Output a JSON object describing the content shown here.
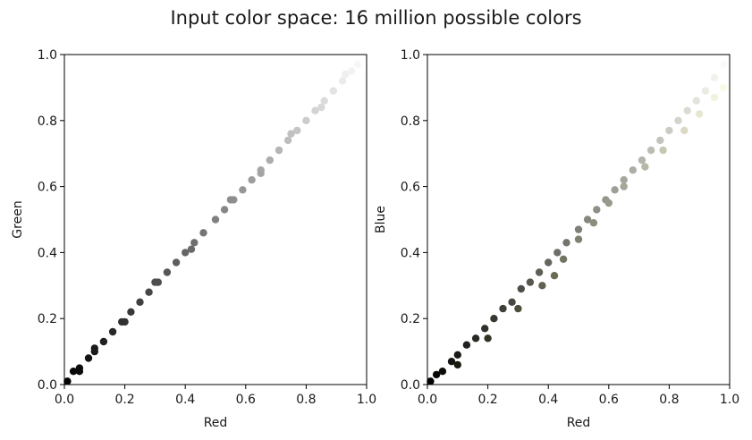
{
  "figure": {
    "title": "Input color space: 16 million possible colors"
  },
  "chart_data": [
    {
      "type": "scatter",
      "title": "",
      "xlabel": "Red",
      "ylabel": "Green",
      "xlim": [
        0.0,
        1.0
      ],
      "ylim": [
        0.0,
        1.0
      ],
      "xticks": [
        "0.0",
        "0.2",
        "0.4",
        "0.6",
        "0.8",
        "1.0"
      ],
      "yticks": [
        "0.0",
        "0.2",
        "0.4",
        "0.6",
        "0.8",
        "1.0"
      ],
      "grid": false,
      "series": [
        {
          "points": [
            [
              0.01,
              0.01
            ],
            [
              0.03,
              0.04
            ],
            [
              0.05,
              0.05
            ],
            [
              0.08,
              0.08
            ],
            [
              0.1,
              0.1
            ],
            [
              0.13,
              0.13
            ],
            [
              0.16,
              0.16
            ],
            [
              0.19,
              0.19
            ],
            [
              0.22,
              0.22
            ],
            [
              0.25,
              0.25
            ],
            [
              0.28,
              0.28
            ],
            [
              0.31,
              0.31
            ],
            [
              0.34,
              0.34
            ],
            [
              0.37,
              0.37
            ],
            [
              0.4,
              0.4
            ],
            [
              0.43,
              0.43
            ],
            [
              0.46,
              0.46
            ],
            [
              0.5,
              0.5
            ],
            [
              0.53,
              0.53
            ],
            [
              0.56,
              0.56
            ],
            [
              0.59,
              0.59
            ],
            [
              0.62,
              0.62
            ],
            [
              0.65,
              0.65
            ],
            [
              0.68,
              0.68
            ],
            [
              0.71,
              0.71
            ],
            [
              0.74,
              0.74
            ],
            [
              0.77,
              0.77
            ],
            [
              0.8,
              0.8
            ],
            [
              0.83,
              0.83
            ],
            [
              0.86,
              0.86
            ],
            [
              0.89,
              0.89
            ],
            [
              0.92,
              0.92
            ],
            [
              0.95,
              0.95
            ],
            [
              0.97,
              0.97
            ],
            [
              0.05,
              0.04
            ],
            [
              0.1,
              0.11
            ],
            [
              0.2,
              0.19
            ],
            [
              0.3,
              0.31
            ],
            [
              0.42,
              0.41
            ],
            [
              0.55,
              0.56
            ],
            [
              0.65,
              0.64
            ],
            [
              0.75,
              0.76
            ],
            [
              0.85,
              0.84
            ],
            [
              0.93,
              0.94
            ]
          ]
        }
      ]
    },
    {
      "type": "scatter",
      "title": "",
      "xlabel": "Red",
      "ylabel": "Blue",
      "xlim": [
        0.0,
        1.0
      ],
      "ylim": [
        0.0,
        1.0
      ],
      "xticks": [
        "0.0",
        "0.2",
        "0.4",
        "0.6",
        "0.8",
        "1.0"
      ],
      "yticks": [
        "0.0",
        "0.2",
        "0.4",
        "0.6",
        "0.8",
        "1.0"
      ],
      "grid": false,
      "series": [
        {
          "points": [
            [
              0.01,
              0.01
            ],
            [
              0.03,
              0.03
            ],
            [
              0.05,
              0.04
            ],
            [
              0.08,
              0.07
            ],
            [
              0.1,
              0.09
            ],
            [
              0.13,
              0.12
            ],
            [
              0.16,
              0.14
            ],
            [
              0.19,
              0.17
            ],
            [
              0.22,
              0.2
            ],
            [
              0.25,
              0.23
            ],
            [
              0.28,
              0.25
            ],
            [
              0.31,
              0.29
            ],
            [
              0.34,
              0.31
            ],
            [
              0.37,
              0.34
            ],
            [
              0.4,
              0.37
            ],
            [
              0.43,
              0.4
            ],
            [
              0.46,
              0.43
            ],
            [
              0.5,
              0.47
            ],
            [
              0.53,
              0.5
            ],
            [
              0.56,
              0.53
            ],
            [
              0.59,
              0.56
            ],
            [
              0.62,
              0.59
            ],
            [
              0.65,
              0.62
            ],
            [
              0.68,
              0.65
            ],
            [
              0.71,
              0.68
            ],
            [
              0.74,
              0.71
            ],
            [
              0.77,
              0.74
            ],
            [
              0.8,
              0.77
            ],
            [
              0.83,
              0.8
            ],
            [
              0.86,
              0.83
            ],
            [
              0.89,
              0.86
            ],
            [
              0.92,
              0.89
            ],
            [
              0.95,
              0.93
            ],
            [
              0.98,
              0.97
            ],
            [
              0.1,
              0.06
            ],
            [
              0.2,
              0.14
            ],
            [
              0.3,
              0.23
            ],
            [
              0.38,
              0.3
            ],
            [
              0.42,
              0.33
            ],
            [
              0.45,
              0.38
            ],
            [
              0.5,
              0.44
            ],
            [
              0.55,
              0.49
            ],
            [
              0.6,
              0.55
            ],
            [
              0.65,
              0.6
            ],
            [
              0.72,
              0.66
            ],
            [
              0.78,
              0.71
            ],
            [
              0.85,
              0.77
            ],
            [
              0.9,
              0.82
            ],
            [
              0.95,
              0.87
            ],
            [
              0.98,
              0.9
            ]
          ]
        }
      ]
    }
  ]
}
